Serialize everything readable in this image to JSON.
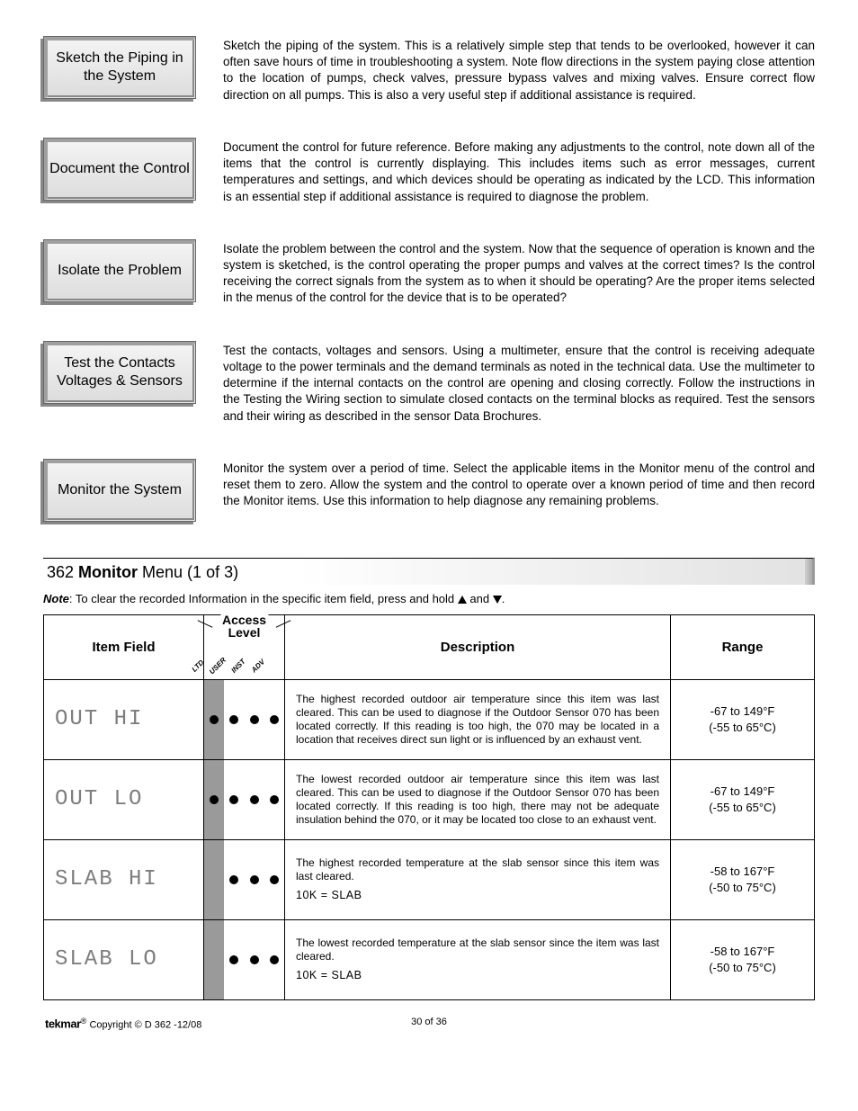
{
  "steps": [
    {
      "label": "Sketch the Piping in the System",
      "text": "Sketch the piping of the system. This is a relatively simple step that tends to be overlooked, however it can often save hours of time in troubleshooting a system. Note flow directions in the system paying close attention to the location of pumps, check valves, pressure bypass valves and mixing valves. Ensure correct flow direction on all pumps. This is also a very useful step if additional assistance is required."
    },
    {
      "label": "Document the Control",
      "text": "Document the control for future reference. Before making any adjustments to the control, note down all of the items that the control is currently displaying. This includes items such as error messages, current temperatures and settings, and which devices should be operating as indicated by the LCD. This information is an essential step if additional assistance is required to diagnose the problem."
    },
    {
      "label": "Isolate the Problem",
      "text": "Isolate the problem between the control and the system. Now that the sequence of operation is known and the system is sketched, is the control operating the proper pumps and valves at the correct times? Is the control receiving the correct signals from the system as to when it should be operating? Are the proper items selected in the menus of the control for the device that is to be operated?"
    },
    {
      "label": "Test the Contacts Voltages & Sensors",
      "text": "Test the contacts, voltages and sensors. Using a multimeter, ensure that the control is receiving adequate voltage to the power terminals and the demand terminals as noted in the technical data. Use the multimeter to determine if the internal contacts on the control are opening and closing correctly. Follow the instructions in the Testing the Wiring section to simulate closed contacts on the terminal blocks as required. Test the sensors and their wiring as described in the sensor Data Brochures."
    },
    {
      "label": "Monitor the System",
      "text": "Monitor the system over a period of time. Select the applicable items in the Monitor menu of the control and reset them to zero. Allow the system and the control to operate over a known period of time and then record the Monitor items. Use this information to help diagnose any remaining problems."
    }
  ],
  "section_title_pre": "362 ",
  "section_title_bold": "Monitor",
  "section_title_post": " Menu (1 of 3)",
  "note_label": "Note",
  "note_text": ": To clear the recorded Information in the specific item field, press and hold ",
  "note_text_mid": " and ",
  "note_text_end": ".",
  "headers": {
    "item": "Item Field",
    "access": "Access Level",
    "desc": "Description",
    "range": "Range",
    "access_cols": [
      "LTD",
      "USER",
      "INST",
      "ADV"
    ]
  },
  "rows": [
    {
      "item": "OUT HI",
      "dots": [
        true,
        true,
        true,
        true
      ],
      "shade": [
        true,
        false,
        false,
        false
      ],
      "desc": "The highest recorded outdoor air temperature since this item was last cleared. This can be used to diagnose if the Outdoor Sensor 070 has been located correctly. If this reading is too high, the 070 may be located in a location that receives direct sun light or is influenced by an exhaust vent.",
      "extra": "",
      "range1": "-67 to 149°F",
      "range2": "(-55 to 65°C)"
    },
    {
      "item": "OUT LO",
      "dots": [
        true,
        true,
        true,
        true
      ],
      "shade": [
        true,
        false,
        false,
        false
      ],
      "desc": "The lowest recorded outdoor air temperature since this item was last cleared. This can be used to diagnose if the Outdoor Sensor 070 has been located correctly. If this reading is too high, there may not be adequate insulation behind the 070, or it may be located too close to an exhaust vent.",
      "extra": "",
      "range1": "-67 to 149°F",
      "range2": "(-55 to 65°C)"
    },
    {
      "item": "SLAB HI",
      "dots": [
        false,
        true,
        true,
        true
      ],
      "shade": [
        true,
        false,
        false,
        false
      ],
      "desc": "The highest recorded temperature at the slab sensor since this item was last cleared.",
      "extra": "10K = SLAB",
      "range1": "-58 to 167°F",
      "range2": "(-50 to 75°C)"
    },
    {
      "item": "SLAB LO",
      "dots": [
        false,
        true,
        true,
        true
      ],
      "shade": [
        true,
        false,
        false,
        false
      ],
      "desc": "The lowest recorded temperature at the slab sensor since the item was last cleared.",
      "extra": "10K = SLAB",
      "range1": "-58 to 167°F",
      "range2": "(-50 to 75°C)"
    }
  ],
  "footer": {
    "brand": "tekmar",
    "copyright": " Copyright © D 362 -12/08",
    "page": "30 of 36"
  }
}
